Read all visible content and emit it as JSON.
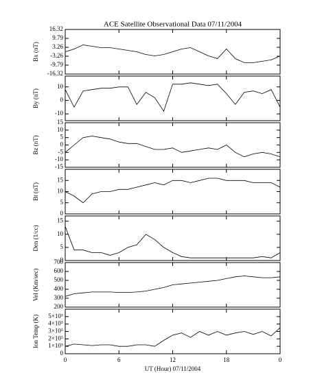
{
  "chart_data": [
    {
      "type": "line",
      "title": "ACE Satellite Observational Data   07/11/2004",
      "ylabel": "Bx (nT)",
      "x": [
        0,
        1,
        2,
        3,
        4,
        5,
        6,
        7,
        8,
        9,
        10,
        11,
        12,
        13,
        14,
        15,
        16,
        17,
        18,
        19,
        20,
        21,
        22,
        23,
        24
      ],
      "values": [
        0,
        2,
        5,
        4,
        3,
        3,
        2,
        1,
        0,
        -2,
        -3,
        -2,
        0,
        2,
        3,
        0,
        -3,
        -5,
        2,
        -5,
        -8,
        -8,
        -7,
        -6,
        -3
      ],
      "color": "#000000",
      "xlim": [
        0,
        24
      ],
      "xticks": [
        0,
        6,
        12,
        18,
        {
          "value": 24,
          "label": "0"
        }
      ],
      "ylim": [
        -16.32,
        16.32
      ],
      "yticks": [
        -16.32,
        -9.79,
        -3.26,
        3.26,
        9.79,
        16.32
      ]
    },
    {
      "type": "line",
      "ylabel": "By (nT)",
      "x": [
        0,
        1,
        2,
        3,
        4,
        5,
        6,
        7,
        8,
        9,
        10,
        11,
        12,
        13,
        14,
        15,
        16,
        17,
        18,
        19,
        20,
        21,
        22,
        23,
        24
      ],
      "values": [
        8,
        -5,
        7,
        8,
        9,
        9,
        10,
        10,
        -3,
        6,
        2,
        -8,
        12,
        12,
        13,
        12,
        11,
        12,
        5,
        -3,
        6,
        7,
        5,
        8,
        -5
      ],
      "color": "#000000",
      "xlim": [
        0,
        24
      ],
      "xticks": [
        0,
        6,
        12,
        18,
        {
          "value": 24,
          "label": "0"
        }
      ],
      "ylim": [
        -15,
        18
      ],
      "yticks": [
        -10,
        0,
        10
      ]
    },
    {
      "type": "line",
      "ylabel": "Bz (nT)",
      "x": [
        0,
        1,
        2,
        3,
        4,
        5,
        6,
        7,
        8,
        9,
        10,
        11,
        12,
        13,
        14,
        15,
        16,
        17,
        18,
        19,
        20,
        21,
        22,
        23,
        24
      ],
      "values": [
        -5,
        0,
        5,
        6,
        5,
        4,
        2,
        1,
        1,
        -1,
        -3,
        -3,
        -2,
        -5,
        -4,
        -3,
        -2,
        -3,
        0,
        -5,
        -8,
        -6,
        -5,
        -6,
        -8
      ],
      "color": "#000000",
      "xlim": [
        0,
        24
      ],
      "xticks": [
        0,
        6,
        12,
        18,
        {
          "value": 24,
          "label": "0"
        }
      ],
      "ylim": [
        -15,
        15
      ],
      "yticks": [
        -15,
        -10,
        -5,
        0,
        5,
        10,
        15
      ]
    },
    {
      "type": "line",
      "ylabel": "Bt (nT)",
      "x": [
        0,
        1,
        2,
        3,
        4,
        5,
        6,
        7,
        8,
        9,
        10,
        11,
        12,
        13,
        14,
        15,
        16,
        17,
        18,
        19,
        20,
        21,
        22,
        23,
        24
      ],
      "values": [
        10,
        8,
        5,
        9,
        10,
        10,
        11,
        11,
        12,
        13,
        14,
        13,
        15,
        15,
        14,
        15,
        16,
        16,
        15,
        15,
        15,
        14,
        14,
        14,
        12
      ],
      "color": "#000000",
      "xlim": [
        0,
        24
      ],
      "xticks": [
        0,
        6,
        12,
        18,
        {
          "value": 24,
          "label": "0"
        }
      ],
      "ylim": [
        0,
        20
      ],
      "yticks": [
        0,
        5,
        10,
        15
      ]
    },
    {
      "type": "line",
      "ylabel": "Den (1/cc)",
      "x": [
        0,
        1,
        2,
        3,
        4,
        5,
        6,
        7,
        8,
        9,
        10,
        11,
        12,
        13,
        14,
        15,
        16,
        17,
        18,
        19,
        20,
        21,
        22,
        23,
        24
      ],
      "values": [
        13,
        4,
        4,
        3,
        3,
        2,
        3,
        5,
        6,
        10,
        8,
        5,
        3,
        1.5,
        1,
        1,
        1,
        1,
        1,
        1,
        1,
        1,
        1.5,
        1,
        3
      ],
      "color": "#000000",
      "xlim": [
        0,
        24
      ],
      "xticks": [
        0,
        6,
        12,
        18,
        {
          "value": 24,
          "label": "0"
        }
      ],
      "ylim": [
        0,
        17
      ],
      "yticks": [
        0,
        5,
        10,
        15
      ]
    },
    {
      "type": "line",
      "ylabel": "Vel (Km/sec)",
      "x": [
        0,
        1,
        2,
        3,
        4,
        5,
        6,
        7,
        8,
        9,
        10,
        11,
        12,
        13,
        14,
        15,
        16,
        17,
        18,
        19,
        20,
        21,
        22,
        23,
        24
      ],
      "values": [
        320,
        350,
        360,
        370,
        370,
        370,
        365,
        365,
        370,
        380,
        400,
        420,
        450,
        460,
        470,
        480,
        490,
        500,
        520,
        540,
        550,
        540,
        530,
        530,
        540
      ],
      "color": "#000000",
      "xlim": [
        0,
        24
      ],
      "xticks": [
        0,
        6,
        12,
        18,
        {
          "value": 24,
          "label": "0"
        }
      ],
      "ylim": [
        200,
        700
      ],
      "yticks": [
        200,
        300,
        400,
        500,
        600,
        700
      ]
    },
    {
      "type": "line",
      "ylabel": "Ion Temp (K)",
      "xlabel": "UT (Hour)   07/11/2004",
      "x": [
        0,
        1,
        2,
        3,
        4,
        5,
        6,
        7,
        8,
        9,
        10,
        11,
        12,
        13,
        14,
        15,
        16,
        17,
        18,
        19,
        20,
        21,
        22,
        23,
        24
      ],
      "values": [
        100000,
        130000,
        120000,
        110000,
        120000,
        120000,
        100000,
        100000,
        120000,
        120000,
        100000,
        180000,
        250000,
        280000,
        220000,
        300000,
        250000,
        300000,
        250000,
        280000,
        300000,
        260000,
        300000,
        240000,
        350000
      ],
      "color": "#000000",
      "xlim": [
        0,
        24
      ],
      "xticks": [
        0,
        6,
        12,
        18,
        {
          "value": 24,
          "label": "0"
        }
      ],
      "ylim": [
        0,
        600000
      ],
      "yticks": [
        0,
        {
          "value": 100000,
          "label": "1×10⁵"
        },
        {
          "value": 200000,
          "label": "2×10⁵"
        },
        {
          "value": 300000,
          "label": "3×10⁵"
        },
        {
          "value": 400000,
          "label": "4×10⁵"
        },
        {
          "value": 500000,
          "label": "5×10⁵"
        }
      ]
    }
  ]
}
